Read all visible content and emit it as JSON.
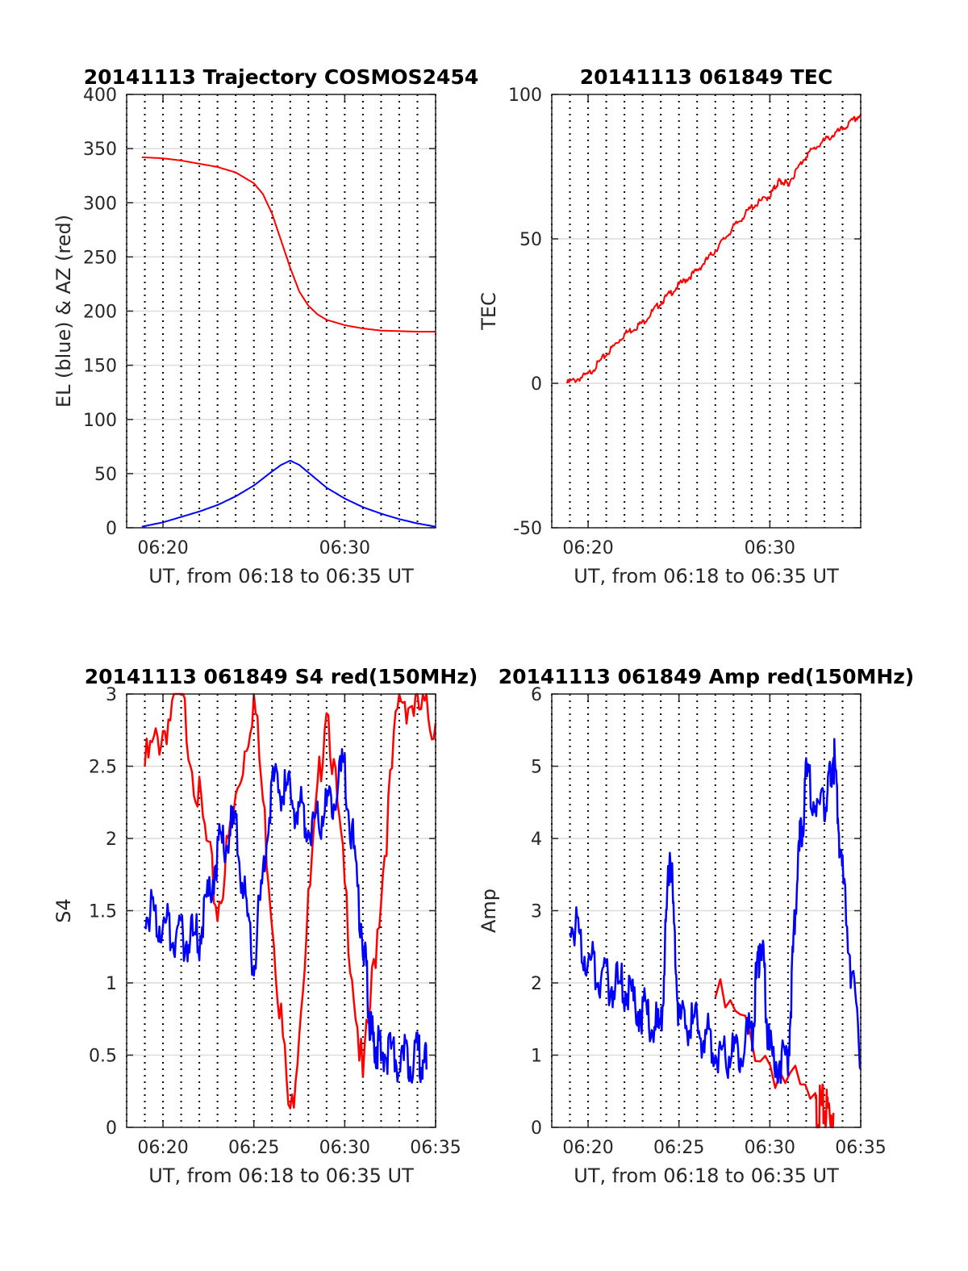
{
  "colors": {
    "azimuth": "#ff0000",
    "elevation": "#0000ff",
    "tec": "#ff0000",
    "red_series": "#ff0000",
    "blue_series": "#0000ff",
    "grid": "#dcdcdc",
    "axis": "#262626"
  },
  "chart_data": [
    {
      "type": "line",
      "title": "20141113 Trajectory COSMOS2454",
      "xlabel": "UT, from 06:18 to 06:35 UT",
      "ylabel": "EL (blue) & AZ (red)",
      "xlim": [
        "06:18",
        "06:35"
      ],
      "ylim": [
        0,
        400
      ],
      "xticks": [
        "06:20",
        "06:30"
      ],
      "yticks": [
        "0",
        "50",
        "100",
        "150",
        "200",
        "250",
        "300",
        "350",
        "400"
      ],
      "grid": "horizontal solid, vertical dotted",
      "series": [
        {
          "color": "red",
          "x": [
            "06:18:50",
            "06:20",
            "06:21",
            "06:22",
            "06:23",
            "06:24",
            "06:25",
            "06:25:30",
            "06:26",
            "06:26:30",
            "06:27",
            "06:27:30",
            "06:28",
            "06:28:30",
            "06:29",
            "06:30",
            "06:31",
            "06:32",
            "06:33",
            "06:34",
            "06:35"
          ],
          "values": [
            342,
            341,
            339,
            336,
            333,
            328,
            318,
            308,
            290,
            265,
            240,
            218,
            205,
            197,
            192,
            187,
            184,
            182,
            181.5,
            181,
            181
          ]
        },
        {
          "color": "blue",
          "x": [
            "06:18:50",
            "06:20",
            "06:21",
            "06:22",
            "06:23",
            "06:24",
            "06:25",
            "06:26",
            "06:26:30",
            "06:27",
            "06:27:30",
            "06:28",
            "06:29",
            "06:30",
            "06:31",
            "06:32",
            "06:33",
            "06:34",
            "06:35"
          ],
          "values": [
            1,
            5,
            10,
            15,
            21,
            29,
            39,
            52,
            58,
            62,
            58,
            51,
            37,
            27,
            19,
            13,
            8,
            4,
            1
          ]
        }
      ]
    },
    {
      "type": "line",
      "title": "20141113 061849 TEC",
      "xlabel": "UT, from 06:18 to 06:35 UT",
      "ylabel": "TEC",
      "xlim": [
        "06:18",
        "06:35"
      ],
      "ylim": [
        -50,
        100
      ],
      "xticks": [
        "06:20",
        "06:30"
      ],
      "yticks": [
        "-50",
        "0",
        "50",
        "100"
      ],
      "grid": "horizontal solid, vertical dotted",
      "series": [
        {
          "color": "red",
          "x": [
            "06:18:50",
            "06:20",
            "06:21",
            "06:22",
            "06:23",
            "06:24",
            "06:25",
            "06:26",
            "06:27",
            "06:28",
            "06:29",
            "06:30",
            "06:30:30",
            "06:31",
            "06:32",
            "06:33",
            "06:34",
            "06:35"
          ],
          "values": [
            0,
            3,
            10,
            17,
            21,
            28,
            34,
            39,
            46,
            54,
            61,
            65,
            70,
            69,
            79,
            84,
            88,
            93
          ]
        }
      ]
    },
    {
      "type": "line",
      "title": "20141113 061849 S4 red(150MHz)",
      "xlabel": "UT, from 06:18 to 06:35 UT",
      "ylabel": "S4",
      "xlim": [
        "06:18",
        "06:35"
      ],
      "ylim": [
        0,
        3
      ],
      "xticks": [
        "06:20",
        "06:25",
        "06:30",
        "06:35"
      ],
      "yticks": [
        "0",
        "0.5",
        "1",
        "1.5",
        "2",
        "2.5",
        "3"
      ],
      "grid": "horizontal solid, vertical dotted",
      "series": [
        {
          "color": "red",
          "x": [
            "06:19",
            "06:21",
            "06:23",
            "06:25",
            "06:27",
            "06:29",
            "06:31",
            "06:33",
            "06:35"
          ],
          "values": [
            2.5,
            3.0,
            1.5,
            3.0,
            0.0,
            3.0,
            0.3,
            3.0,
            2.8
          ]
        },
        {
          "color": "blue",
          "x": [
            "06:19",
            "06:20",
            "06:21",
            "06:22",
            "06:23",
            "06:24",
            "06:25",
            "06:26",
            "06:27",
            "06:28",
            "06:29",
            "06:30",
            "06:31",
            "06:31:30",
            "06:32",
            "06:33",
            "06:34",
            "06:34:30"
          ],
          "values": [
            1.5,
            1.4,
            1.3,
            1.3,
            1.9,
            2.1,
            1.1,
            2.4,
            2.3,
            2.1,
            2.2,
            2.5,
            1.3,
            0.6,
            0.55,
            0.45,
            0.5,
            0.4
          ]
        }
      ]
    },
    {
      "type": "line",
      "title": "20141113 061849 Amp red(150MHz)",
      "xlabel": "UT, from 06:18 to 06:35 UT",
      "ylabel": "Amp",
      "xlim": [
        "06:18",
        "06:35"
      ],
      "ylim": [
        0,
        6
      ],
      "xticks": [
        "06:20",
        "06:25",
        "06:30",
        "06:35"
      ],
      "yticks": [
        "0",
        "1",
        "2",
        "3",
        "4",
        "5",
        "6"
      ],
      "grid": "horizontal solid, vertical dotted",
      "series": [
        {
          "color": "red",
          "x": [
            "06:27",
            "06:32:30",
            "06:33",
            "06:33:30"
          ],
          "values": [
            1.8,
            0.2,
            0.25,
            0.2
          ]
        },
        {
          "color": "blue",
          "x": [
            "06:19",
            "06:20",
            "06:21",
            "06:22",
            "06:23",
            "06:24",
            "06:24:30",
            "06:25",
            "06:26",
            "06:27",
            "06:28",
            "06:29",
            "06:29:30",
            "06:30",
            "06:31",
            "06:31:30",
            "06:32",
            "06:33",
            "06:33:30",
            "06:34",
            "06:35"
          ],
          "values": [
            2.9,
            2.3,
            2.0,
            1.9,
            1.6,
            1.3,
            3.9,
            1.5,
            1.4,
            1.1,
            1.0,
            1.3,
            2.7,
            1.0,
            0.9,
            3.5,
            4.8,
            4.3,
            5.2,
            3.5,
            0.8
          ]
        }
      ]
    }
  ]
}
